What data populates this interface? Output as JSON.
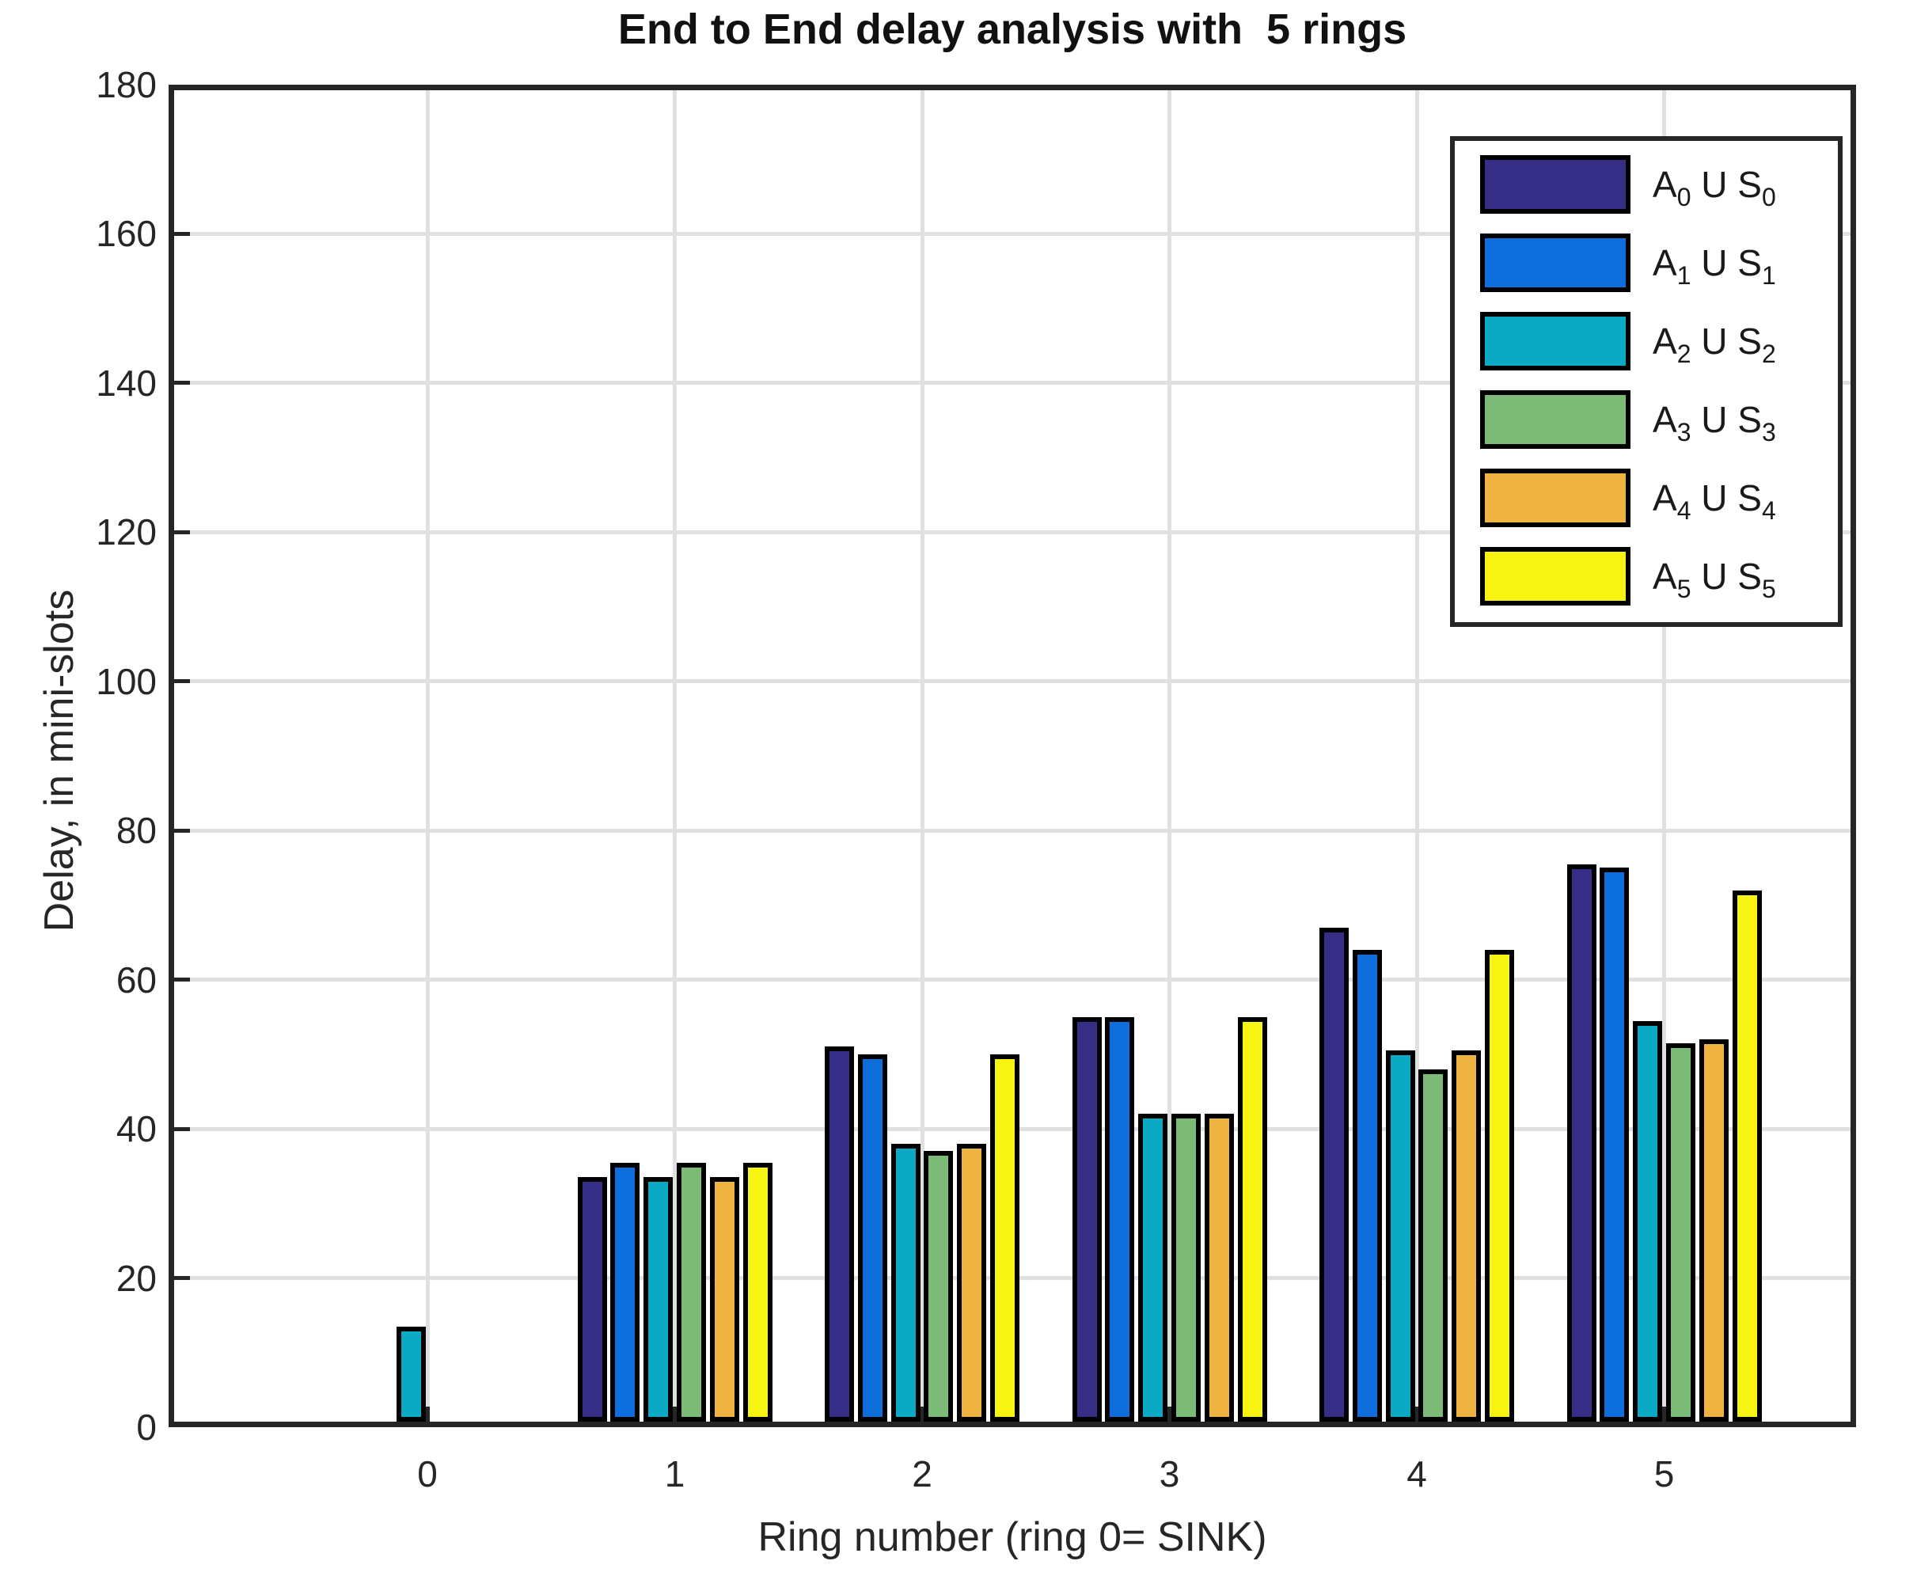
{
  "title": "End to End delay analysis with  5 rings",
  "chart_data": {
    "type": "bar",
    "title": "End to End delay analysis with  5 rings",
    "xlabel": "Ring number (ring 0= SINK)",
    "ylabel": "Delay, in mini-slots",
    "categories": [
      "0",
      "1",
      "2",
      "3",
      "4",
      "5"
    ],
    "ylim": [
      0,
      180
    ],
    "yticks": [
      0,
      20,
      40,
      60,
      80,
      100,
      120,
      140,
      160,
      180
    ],
    "grid": "both",
    "legend_position": "upper-right",
    "bar_edge_color": "#000000",
    "axis_color": "#262626",
    "grid_color": "#e0e0e0",
    "series": [
      {
        "name": "A0 U S0",
        "label_parts": [
          "A",
          "0",
          " U S",
          "0"
        ],
        "color": "#372E87",
        "values": [
          0,
          33.5,
          51,
          55,
          67,
          75.5
        ]
      },
      {
        "name": "A1 U S1",
        "label_parts": [
          "A",
          "1",
          " U S",
          "1"
        ],
        "color": "#0E6FDC",
        "values": [
          0,
          35.5,
          50,
          55,
          64,
          75
        ]
      },
      {
        "name": "A2 U S2",
        "label_parts": [
          "A",
          "2",
          " U S",
          "2"
        ],
        "color": "#0AA9C4",
        "values": [
          13.5,
          33.5,
          38,
          42,
          50.5,
          54.5
        ]
      },
      {
        "name": "A3 U S3",
        "label_parts": [
          "A",
          "3",
          " U S",
          "3"
        ],
        "color": "#7CBB77",
        "values": [
          0,
          35.5,
          37,
          42,
          48,
          51.5
        ]
      },
      {
        "name": "A4 U S4",
        "label_parts": [
          "A",
          "4",
          " U S",
          "4"
        ],
        "color": "#EFB342",
        "values": [
          0,
          33.5,
          38,
          42,
          50.5,
          52
        ]
      },
      {
        "name": "A5 U S5",
        "label_parts": [
          "A",
          "5",
          " U S",
          "5"
        ],
        "color": "#F8F412",
        "values": [
          0,
          35.5,
          50,
          55,
          64,
          72
        ]
      }
    ]
  }
}
